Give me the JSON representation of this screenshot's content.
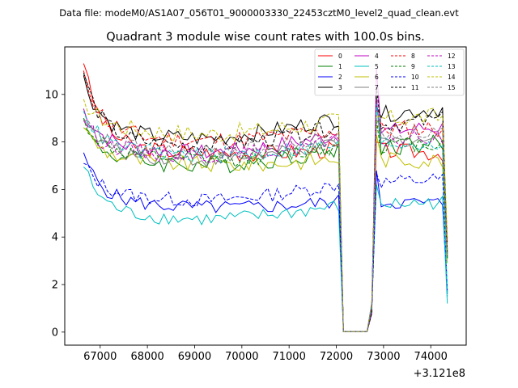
{
  "figure": {
    "suptitle": "Data file: modeM0/AS1A07_056T01_9000003330_22453cztM0_level2_quad_clean.evt"
  },
  "chart_data": {
    "type": "line",
    "title": "Quadrant 3 module wise count rates with 100.0s bins.",
    "xlabel": "",
    "ylabel": "",
    "x_offset_label": "+3.121e8",
    "xlim": [
      66250,
      74750
    ],
    "ylim": [
      -0.55,
      12.0
    ],
    "xticks": [
      67000,
      68000,
      69000,
      70000,
      71000,
      72000,
      73000,
      74000
    ],
    "yticks": [
      0,
      2,
      4,
      6,
      8,
      10
    ],
    "legend_position": "top-right",
    "series": [
      {
        "name": "0",
        "color": "#ff0000",
        "dash": "solid",
        "start": 11.3,
        "base": 7.9,
        "decay": 3.4,
        "recovery": 8.0,
        "amp": 0.35,
        "trend": -0.2,
        "end": 3.8
      },
      {
        "name": "1",
        "color": "#008000",
        "dash": "solid",
        "start": 8.6,
        "base": 7.4,
        "decay": 1.2,
        "recovery": 9.9,
        "amp": 0.4,
        "trend": 0.3,
        "end": 3.4
      },
      {
        "name": "2",
        "color": "#0000ff",
        "dash": "solid",
        "start": 7.55,
        "base": 5.6,
        "decay": 1.9,
        "recovery": 6.8,
        "amp": 0.3,
        "trend": -0.1,
        "end": 1.6
      },
      {
        "name": "3",
        "color": "#000000",
        "dash": "solid",
        "start": 10.8,
        "base": 8.5,
        "decay": 2.2,
        "recovery": 9.5,
        "amp": 0.35,
        "trend": 0.5,
        "end": 3.1
      },
      {
        "name": "4",
        "color": "#c000c0",
        "dash": "solid",
        "start": 9.4,
        "base": 7.9,
        "decay": 1.5,
        "recovery": 11.1,
        "amp": 0.35,
        "trend": 0.4,
        "end": 3.2
      },
      {
        "name": "5",
        "color": "#00bfbf",
        "dash": "solid",
        "start": 6.95,
        "base": 5.1,
        "decay": 1.9,
        "recovery": 6.2,
        "amp": 0.3,
        "trend": 0.2,
        "end": 1.2
      },
      {
        "name": "6",
        "color": "#bfbf00",
        "dash": "solid",
        "start": 8.6,
        "base": 7.4,
        "decay": 1.2,
        "recovery": 8.3,
        "amp": 0.35,
        "trend": -0.1,
        "end": 2.9
      },
      {
        "name": "7",
        "color": "#808080",
        "dash": "solid",
        "start": 9.0,
        "base": 7.6,
        "decay": 1.4,
        "recovery": 9.7,
        "amp": 0.3,
        "trend": 0.3,
        "end": 3.4
      },
      {
        "name": "8",
        "color": "#ff0000",
        "dash": "dashed",
        "start": 11.0,
        "base": 8.4,
        "decay": 2.6,
        "recovery": 8.6,
        "amp": 0.4,
        "trend": 0.1,
        "end": 3.9
      },
      {
        "name": "9",
        "color": "#008000",
        "dash": "dashed",
        "start": 9.0,
        "base": 7.6,
        "decay": 1.4,
        "recovery": 8.9,
        "amp": 0.35,
        "trend": 0.2,
        "end": 3.1
      },
      {
        "name": "10",
        "color": "#0000ff",
        "dash": "dashed",
        "start": 7.1,
        "base": 5.9,
        "decay": 1.2,
        "recovery": 6.7,
        "amp": 0.3,
        "trend": 0.3,
        "end": 1.7
      },
      {
        "name": "11",
        "color": "#000000",
        "dash": "dashed",
        "start": 10.9,
        "base": 8.2,
        "decay": 2.7,
        "recovery": 10.3,
        "amp": 0.35,
        "trend": 0.4,
        "end": 3.3
      },
      {
        "name": "12",
        "color": "#c000c0",
        "dash": "dashed",
        "start": 8.9,
        "base": 7.8,
        "decay": 1.1,
        "recovery": 9.8,
        "amp": 0.35,
        "trend": 0.2,
        "end": 3.5
      },
      {
        "name": "13",
        "color": "#00bfbf",
        "dash": "dashed",
        "start": 9.3,
        "base": 7.8,
        "decay": 1.5,
        "recovery": 9.6,
        "amp": 0.35,
        "trend": 0.1,
        "end": 1.5
      },
      {
        "name": "14",
        "color": "#bfbf00",
        "dash": "dashed",
        "start": 9.8,
        "base": 8.7,
        "decay": 1.1,
        "recovery": 9.1,
        "amp": 0.4,
        "trend": 0.2,
        "end": 4.0
      },
      {
        "name": "15",
        "color": "#808080",
        "dash": "dashed",
        "start": 8.9,
        "base": 7.9,
        "decay": 1.0,
        "recovery": 9.0,
        "amp": 0.35,
        "trend": 0.3,
        "end": 3.3
      }
    ],
    "x_series": {
      "start": 66650,
      "step": 100,
      "count": 78
    },
    "drop": {
      "last_before": 72050,
      "first_zero": 72150,
      "last_zero": 72650,
      "first_after": 72850
    }
  }
}
